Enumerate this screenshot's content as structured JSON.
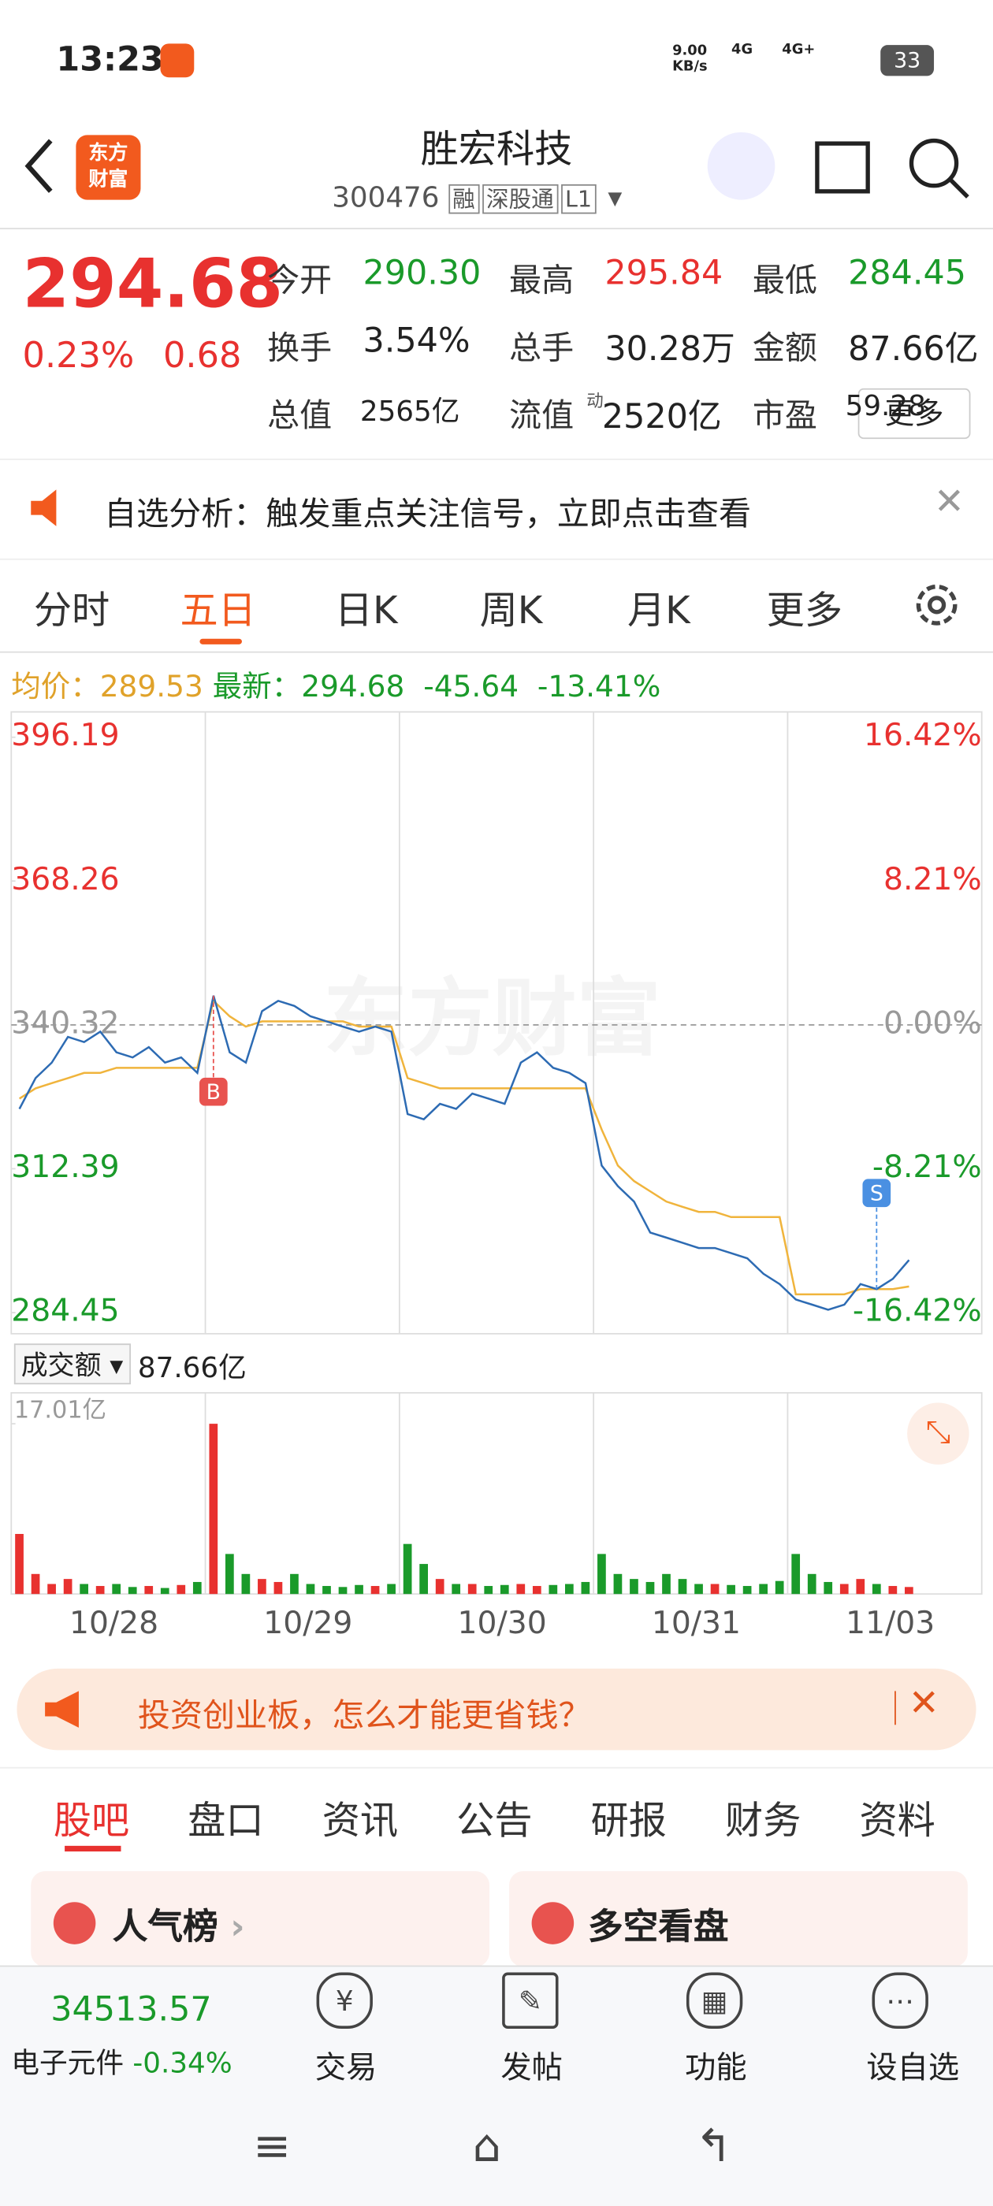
{
  "status": {
    "time": "13:23",
    "speed": "9.00",
    "speed_unit": "KB/s",
    "net1": "4G",
    "net2": "4G+",
    "battery": "33"
  },
  "header": {
    "logo": [
      "东方",
      "财富"
    ],
    "title": "胜宏科技",
    "code": "300476",
    "tags": [
      "融",
      "深股通",
      "L1"
    ]
  },
  "quote": {
    "price": "294.68",
    "pct": "0.23%",
    "change": "0.68",
    "fields": [
      {
        "label": "今开",
        "value": "290.30",
        "color": "#1a9a2a"
      },
      {
        "label": "最高",
        "value": "295.84",
        "color": "#e8312f"
      },
      {
        "label": "最低",
        "value": "284.45",
        "color": "#1a9a2a"
      },
      {
        "label": "换手",
        "value": "3.54%",
        "color": "#222"
      },
      {
        "label": "总手",
        "value": "30.28万",
        "color": "#222"
      },
      {
        "label": "金额",
        "value": "87.66亿",
        "color": "#222"
      },
      {
        "label": "总值",
        "value": "2565亿",
        "color": "#222"
      },
      {
        "label": "流值",
        "value": "2520亿",
        "color": "#222"
      },
      {
        "label": "市盈",
        "value": "59.28",
        "color": "#222"
      }
    ],
    "pe_sup": "动",
    "more": "更多"
  },
  "notice": "自选分析：触发重点关注信号，立即点击查看",
  "tabs": {
    "items": [
      "分时",
      "五日",
      "日K",
      "周K",
      "月K",
      "更多"
    ],
    "active": 1
  },
  "info": {
    "avg_label": "均价：",
    "avg": "289.53",
    "last_label": "最新：",
    "last": "294.68",
    "change": "-45.64",
    "pct": "-13.41%"
  },
  "chart": {
    "watermark": "东方财富",
    "yticks": [
      396.19,
      368.26,
      340.32,
      312.39,
      284.45
    ],
    "pct_labels": [
      "16.42%",
      "8.21%",
      "0.00%",
      "-8.21%",
      "-16.42%"
    ],
    "dates": [
      "10/28",
      "10/29",
      "10/30",
      "10/31",
      "11/03"
    ],
    "markers": [
      "B",
      "S"
    ],
    "price": [
      324,
      330,
      333,
      338,
      337,
      339,
      335,
      334,
      336,
      333,
      334,
      331,
      346,
      335,
      333,
      343,
      345,
      344,
      342,
      341,
      340,
      339,
      340,
      339,
      323,
      322,
      325,
      324,
      327,
      326,
      325,
      333,
      335,
      332,
      331,
      329,
      313,
      309,
      306,
      300,
      299,
      298,
      297,
      297,
      296,
      295,
      292,
      290,
      287,
      286,
      285,
      286,
      290,
      289,
      291,
      294.68
    ],
    "avg": [
      326,
      328,
      329,
      330,
      331,
      331,
      332,
      332,
      332,
      332,
      332,
      332,
      345,
      342,
      340,
      341,
      341,
      341,
      341,
      341,
      341,
      340,
      340,
      340,
      330,
      329,
      328,
      328,
      328,
      328,
      328,
      328,
      328,
      328,
      328,
      328,
      320,
      313,
      310,
      308,
      306,
      305,
      304,
      304,
      303,
      303,
      303,
      303,
      288,
      288,
      288,
      288,
      289,
      289,
      289,
      289.53
    ],
    "volume": [
      6,
      2,
      1,
      1.5,
      1,
      0.8,
      1,
      0.7,
      0.8,
      0.6,
      0.9,
      1.2,
      17.01,
      4,
      2,
      1.5,
      1.2,
      2,
      1,
      0.8,
      0.7,
      0.9,
      0.8,
      1,
      5,
      3,
      1.5,
      1,
      1,
      0.8,
      0.9,
      1,
      0.8,
      0.9,
      1,
      1.2,
      4,
      2,
      1.5,
      1.2,
      2,
      1.5,
      1,
      1,
      0.9,
      0.8,
      1,
      1.3,
      4,
      2,
      1.2,
      1,
      1.5,
      1,
      0.8,
      0.7
    ],
    "vol_label": "成交额",
    "vol_total": "87.66亿",
    "vol_max": {
      "value": 17.01,
      "label": "17.01亿"
    }
  },
  "ad": "投资创业板，怎么才能更省钱？",
  "sections": [
    "股吧",
    "盘口",
    "资讯",
    "公告",
    "研报",
    "财务",
    "资料"
  ],
  "cards": [
    "人气榜",
    "多空看盘"
  ],
  "bottom": {
    "index": "34513.57",
    "sector": "电子元件",
    "sector_pct": "-0.34%",
    "buttons": [
      "交易",
      "发帖",
      "功能",
      "设自选"
    ]
  }
}
